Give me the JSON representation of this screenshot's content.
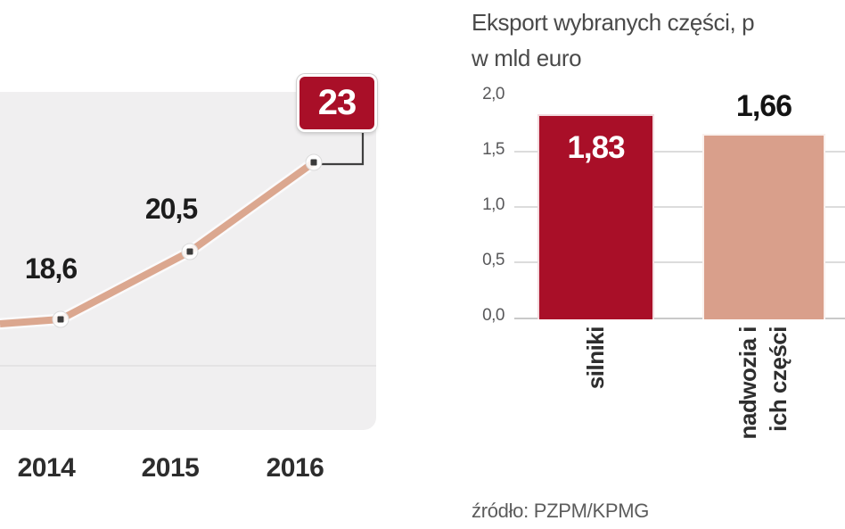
{
  "left_chart": {
    "x_labels": [
      "2014",
      "2015",
      "2016"
    ],
    "value_labels": [
      "18,6",
      "20,5",
      "23"
    ]
  },
  "right_chart": {
    "title_line1": "Eksport wybranych części, p",
    "title_line2": "w mld euro",
    "y_tick_labels": [
      "2,0",
      "1,5",
      "1,0",
      "0,5",
      "0,0"
    ],
    "bar_value_labels": [
      "1,83",
      "1,66"
    ],
    "bar_category_labels": [
      [
        "silniki"
      ],
      [
        "nadwozia i",
        "ich części"
      ]
    ]
  },
  "source_note": "źródło: PZPM/KPMG",
  "colors": {
    "accent_red": "#a90f28",
    "salmon": "#d99f8b",
    "line_salmon": "#dba78f",
    "plot_background": "#f0eff0"
  },
  "chart_data": [
    {
      "type": "line",
      "categories": [
        "2014",
        "2015",
        "2016"
      ],
      "values": [
        18.6,
        20.5,
        23
      ],
      "data_labels": [
        "18,6",
        "20,5",
        "23"
      ],
      "highlighted_point": {
        "category": "2016",
        "value": 23
      },
      "grid": true,
      "legend": "none"
    },
    {
      "type": "bar",
      "title": "Eksport wybranych części, p",
      "subtitle": "w mld euro",
      "categories": [
        "silniki",
        "nadwozia i ich części"
      ],
      "values": [
        1.83,
        1.66
      ],
      "data_labels": [
        "1,83",
        "1,66"
      ],
      "bar_colors": [
        "#a90f28",
        "#d99f8b"
      ],
      "ylim": [
        0,
        2.0
      ],
      "yticks": [
        0.0,
        0.5,
        1.0,
        1.5,
        2.0
      ],
      "grid": true,
      "legend": "none",
      "source": "źródło: PZPM/KPMG"
    }
  ]
}
